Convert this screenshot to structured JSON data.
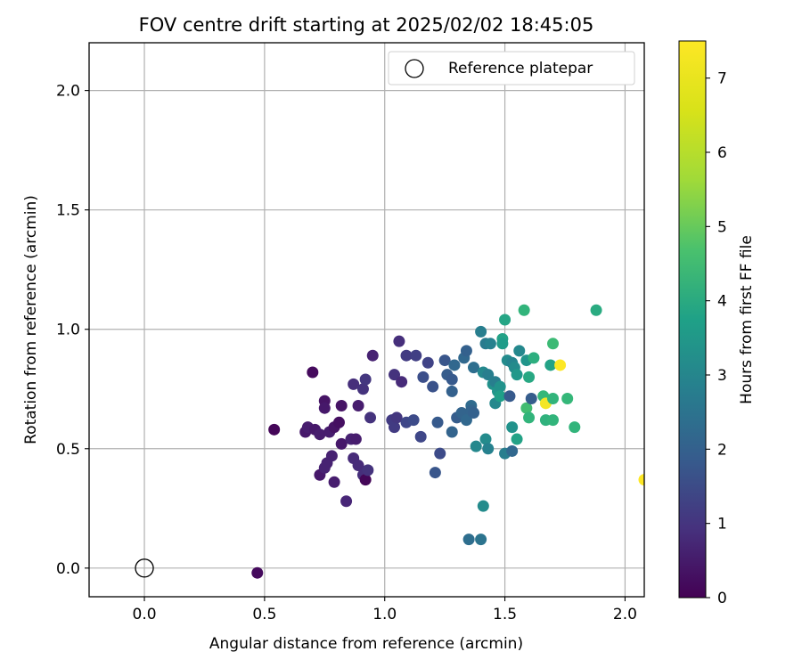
{
  "chart_data": {
    "type": "scatter",
    "title": "FOV centre drift starting at 2025/02/02 18:45:05",
    "xlabel": "Angular distance from reference (arcmin)",
    "ylabel": "Rotation from reference (arcmin)",
    "xlim": [
      -0.23,
      2.08
    ],
    "ylim": [
      -0.12,
      2.2
    ],
    "xticks": [
      0.0,
      0.5,
      1.0,
      1.5,
      2.0
    ],
    "xtick_labels": [
      "0.0",
      "0.5",
      "1.0",
      "1.5",
      "2.0"
    ],
    "yticks": [
      0.0,
      0.5,
      1.0,
      1.5,
      2.0
    ],
    "ytick_labels": [
      "0.0",
      "0.5",
      "1.0",
      "1.5",
      "2.0"
    ],
    "grid": true,
    "legend": {
      "placement": "top-right",
      "label": "Reference platepar"
    },
    "reference_point": {
      "x": 0.0,
      "y": 0.0
    },
    "colorbar": {
      "label": "Hours from first FF file",
      "colormap": "viridis",
      "range": [
        0,
        7.5
      ],
      "ticks": [
        0,
        1,
        2,
        3,
        4,
        5,
        6,
        7
      ],
      "tick_labels": [
        "0",
        "1",
        "2",
        "3",
        "4",
        "5",
        "6",
        "7"
      ]
    },
    "points": [
      [
        0.47,
        -0.02,
        0.2
      ],
      [
        0.54,
        0.58,
        0.1
      ],
      [
        0.7,
        0.82,
        0.2
      ],
      [
        0.67,
        0.57,
        0.5
      ],
      [
        0.68,
        0.59,
        0.6
      ],
      [
        0.71,
        0.58,
        0.5
      ],
      [
        0.73,
        0.56,
        0.6
      ],
      [
        0.73,
        0.39,
        0.5
      ],
      [
        0.75,
        0.7,
        0.4
      ],
      [
        0.75,
        0.67,
        0.5
      ],
      [
        0.75,
        0.42,
        0.7
      ],
      [
        0.76,
        0.44,
        0.7
      ],
      [
        0.77,
        0.57,
        0.6
      ],
      [
        0.78,
        0.47,
        0.7
      ],
      [
        0.79,
        0.36,
        0.6
      ],
      [
        0.79,
        0.59,
        0.4
      ],
      [
        0.81,
        0.61,
        0.3
      ],
      [
        0.82,
        0.68,
        0.4
      ],
      [
        0.82,
        0.52,
        0.5
      ],
      [
        0.84,
        0.28,
        0.8
      ],
      [
        0.86,
        0.54,
        0.7
      ],
      [
        0.87,
        0.46,
        0.9
      ],
      [
        0.87,
        0.77,
        1.0
      ],
      [
        0.88,
        0.54,
        0.6
      ],
      [
        0.89,
        0.68,
        0.6
      ],
      [
        0.89,
        0.43,
        0.9
      ],
      [
        0.91,
        0.75,
        1.1
      ],
      [
        0.92,
        0.79,
        1.2
      ],
      [
        0.91,
        0.39,
        1.0
      ],
      [
        0.92,
        0.37,
        0.1
      ],
      [
        0.93,
        0.41,
        1.1
      ],
      [
        0.94,
        0.63,
        1.1
      ],
      [
        0.95,
        0.89,
        0.7
      ],
      [
        1.03,
        0.62,
        1.3
      ],
      [
        1.04,
        0.59,
        1.3
      ],
      [
        1.04,
        0.81,
        1.1
      ],
      [
        1.05,
        0.63,
        1.2
      ],
      [
        1.06,
        0.95,
        1.0
      ],
      [
        1.07,
        0.78,
        0.9
      ],
      [
        1.09,
        0.89,
        1.3
      ],
      [
        1.09,
        0.61,
        1.6
      ],
      [
        1.12,
        0.62,
        1.7
      ],
      [
        1.13,
        0.89,
        1.4
      ],
      [
        1.15,
        0.55,
        1.6
      ],
      [
        1.16,
        0.8,
        1.8
      ],
      [
        1.18,
        0.86,
        1.5
      ],
      [
        1.2,
        0.76,
        1.9
      ],
      [
        1.21,
        0.4,
        2.0
      ],
      [
        1.22,
        0.61,
        2.1
      ],
      [
        1.23,
        0.48,
        1.7
      ],
      [
        1.25,
        0.87,
        2.0
      ],
      [
        1.26,
        0.81,
        2.2
      ],
      [
        1.28,
        0.74,
        2.3
      ],
      [
        1.28,
        0.57,
        2.4
      ],
      [
        1.28,
        0.79,
        2.1
      ],
      [
        1.29,
        0.85,
        2.5
      ],
      [
        1.3,
        0.63,
        2.2
      ],
      [
        1.32,
        0.65,
        2.4
      ],
      [
        1.33,
        0.88,
        2.5
      ],
      [
        1.34,
        0.91,
        2.3
      ],
      [
        1.34,
        0.62,
        2.5
      ],
      [
        1.35,
        0.12,
        2.7
      ],
      [
        1.36,
        0.68,
        2.6
      ],
      [
        1.37,
        0.84,
        2.7
      ],
      [
        1.36,
        0.66,
        2.4
      ],
      [
        1.37,
        0.65,
        2.3
      ],
      [
        1.38,
        0.51,
        3.5
      ],
      [
        1.4,
        0.12,
        2.9
      ],
      [
        1.4,
        0.99,
        3.2
      ],
      [
        1.41,
        0.26,
        3.6
      ],
      [
        1.41,
        0.82,
        3.5
      ],
      [
        1.42,
        0.94,
        3.1
      ],
      [
        1.43,
        0.81,
        3.2
      ],
      [
        1.42,
        0.54,
        3.6
      ],
      [
        1.43,
        0.5,
        3.3
      ],
      [
        1.44,
        0.94,
        3.3
      ],
      [
        1.45,
        0.77,
        3.8
      ],
      [
        1.46,
        0.69,
        3.5
      ],
      [
        1.46,
        0.78,
        3.2
      ],
      [
        1.47,
        0.74,
        3.9
      ],
      [
        1.48,
        0.76,
        3.8
      ],
      [
        1.48,
        0.72,
        4.2
      ],
      [
        1.49,
        0.96,
        4.3
      ],
      [
        1.49,
        0.94,
        4.1
      ],
      [
        1.5,
        0.48,
        3.2
      ],
      [
        1.5,
        1.04,
        4.4
      ],
      [
        1.51,
        0.87,
        3.6
      ],
      [
        1.52,
        0.72,
        2.1
      ],
      [
        1.53,
        0.49,
        2.5
      ],
      [
        1.53,
        0.59,
        3.8
      ],
      [
        1.53,
        0.86,
        3.4
      ],
      [
        1.54,
        0.84,
        3.6
      ],
      [
        1.55,
        0.54,
        4.3
      ],
      [
        1.55,
        0.81,
        4.0
      ],
      [
        1.56,
        0.91,
        3.5
      ],
      [
        1.58,
        1.08,
        4.9
      ],
      [
        1.59,
        0.87,
        3.9
      ],
      [
        1.59,
        0.67,
        5.2
      ],
      [
        1.6,
        0.63,
        4.9
      ],
      [
        1.6,
        0.8,
        4.5
      ],
      [
        1.61,
        0.71,
        2.2
      ],
      [
        1.62,
        0.88,
        4.7
      ],
      [
        1.66,
        0.72,
        5.0
      ],
      [
        1.67,
        0.69,
        7.4
      ],
      [
        1.67,
        0.62,
        4.8
      ],
      [
        1.69,
        0.85,
        4.3
      ],
      [
        1.7,
        0.94,
        5.1
      ],
      [
        1.7,
        0.71,
        4.9
      ],
      [
        1.7,
        0.62,
        4.9
      ],
      [
        1.73,
        0.85,
        7.5
      ],
      [
        1.76,
        0.71,
        5.0
      ],
      [
        1.79,
        0.59,
        4.9
      ],
      [
        1.88,
        1.08,
        4.6
      ],
      [
        2.08,
        0.37,
        7.5
      ]
    ]
  }
}
